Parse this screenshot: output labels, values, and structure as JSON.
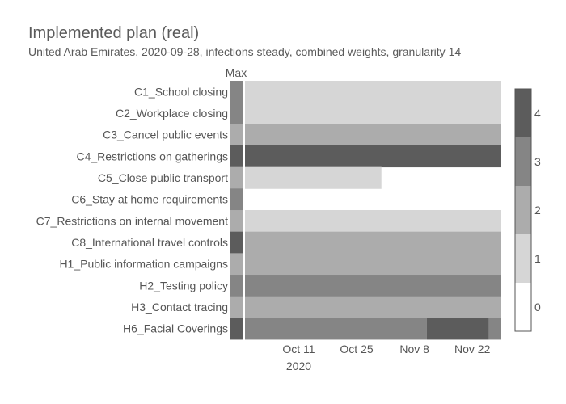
{
  "chart_data": {
    "type": "heatmap",
    "title": "Implemented plan (real)",
    "subtitle": "United Arab Emirates, 2020-09-28, infections steady, combined weights, granularity 14",
    "max_column_label": "Max",
    "x_range": [
      "2020-09-28",
      "2020-11-29"
    ],
    "x_ticks": [
      {
        "date": "2020-10-11",
        "label": "Oct 11",
        "sublabel": "2020"
      },
      {
        "date": "2020-10-25",
        "label": "Oct 25",
        "sublabel": ""
      },
      {
        "date": "2020-11-08",
        "label": "Nov 8",
        "sublabel": ""
      },
      {
        "date": "2020-11-22",
        "label": "Nov 22",
        "sublabel": ""
      }
    ],
    "colorscale": {
      "min": 0,
      "max": 4,
      "ticks": [
        0,
        1,
        2,
        3,
        4
      ],
      "colors": [
        "#ffffff",
        "#d6d6d6",
        "#acacac",
        "#858585",
        "#5c5c5c"
      ]
    },
    "rows": [
      {
        "label": "C1_School closing",
        "max": 3,
        "segments": [
          {
            "start": "2020-09-28",
            "end": "2020-11-29",
            "value": 1
          }
        ]
      },
      {
        "label": "C2_Workplace closing",
        "max": 3,
        "segments": [
          {
            "start": "2020-09-28",
            "end": "2020-11-29",
            "value": 1
          }
        ]
      },
      {
        "label": "C3_Cancel public events",
        "max": 2,
        "segments": [
          {
            "start": "2020-09-28",
            "end": "2020-11-29",
            "value": 2
          }
        ]
      },
      {
        "label": "C4_Restrictions on gatherings",
        "max": 4,
        "segments": [
          {
            "start": "2020-09-28",
            "end": "2020-11-29",
            "value": 4
          }
        ]
      },
      {
        "label": "C5_Close public transport",
        "max": 2,
        "segments": [
          {
            "start": "2020-09-28",
            "end": "2020-10-31",
            "value": 1
          }
        ]
      },
      {
        "label": "C6_Stay at home requirements",
        "max": 3,
        "segments": []
      },
      {
        "label": "C7_Restrictions on internal movement",
        "max": 2,
        "segments": [
          {
            "start": "2020-09-28",
            "end": "2020-11-29",
            "value": 1
          }
        ]
      },
      {
        "label": "C8_International travel controls",
        "max": 4,
        "segments": [
          {
            "start": "2020-09-28",
            "end": "2020-11-29",
            "value": 2
          }
        ]
      },
      {
        "label": "H1_Public information campaigns",
        "max": 2,
        "segments": [
          {
            "start": "2020-09-28",
            "end": "2020-11-29",
            "value": 2
          }
        ]
      },
      {
        "label": "H2_Testing policy",
        "max": 3,
        "segments": [
          {
            "start": "2020-09-28",
            "end": "2020-11-29",
            "value": 3
          }
        ]
      },
      {
        "label": "H3_Contact tracing",
        "max": 2,
        "segments": [
          {
            "start": "2020-09-28",
            "end": "2020-11-29",
            "value": 2
          }
        ]
      },
      {
        "label": "H6_Facial Coverings",
        "max": 4,
        "segments": [
          {
            "start": "2020-09-28",
            "end": "2020-11-11",
            "value": 3
          },
          {
            "start": "2020-11-11",
            "end": "2020-11-26",
            "value": 4
          },
          {
            "start": "2020-11-26",
            "end": "2020-11-29",
            "value": 3
          }
        ]
      }
    ]
  }
}
